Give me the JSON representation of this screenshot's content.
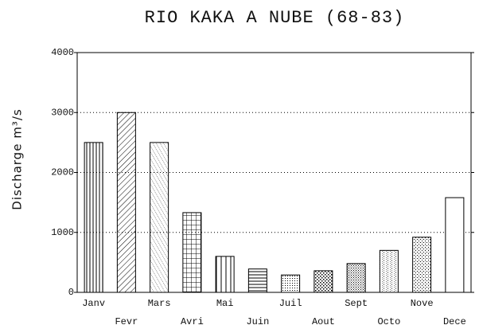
{
  "chart_data": {
    "type": "bar",
    "title": "RIO KAKA A NUBE (68-83)",
    "y_label": "Discharge  m³/s",
    "categories": [
      "Janv",
      "Fevr",
      "Mars",
      "Avri",
      "Mai",
      "Juin",
      "Juil",
      "Aout",
      "Sept",
      "Octo",
      "Nove",
      "Dece"
    ],
    "values": [
      2500,
      3000,
      2500,
      1330,
      600,
      390,
      290,
      360,
      480,
      700,
      920,
      1580
    ],
    "color": "#000000",
    "ylim": [
      0,
      4000
    ],
    "yticks": [
      0,
      1000,
      2000,
      3000,
      4000
    ],
    "grid": true
  }
}
